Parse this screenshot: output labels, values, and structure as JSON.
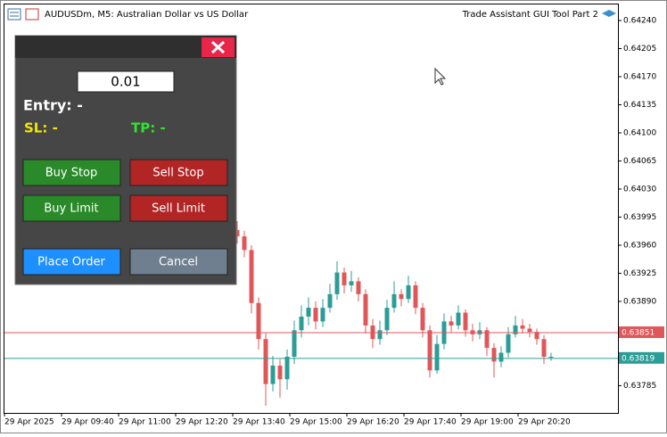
{
  "window": {
    "symbol_title": "AUDUSDm, M5:  Australian Dollar vs US Dollar",
    "expert_name": "Trade Assistant GUI Tool Part 2"
  },
  "chart_data": {
    "type": "candlestick",
    "open": [
      0.63979,
      0.63971,
      0.63954,
      0.63888,
      0.63843,
      0.63787,
      0.6381,
      0.63793,
      0.63821,
      0.63854,
      0.63871,
      0.63882,
      0.63865,
      0.63882,
      0.63899,
      0.63926,
      0.6391,
      0.63915,
      0.63899,
      0.6386,
      0.63843,
      0.63854,
      0.63882,
      0.63899,
      0.63893,
      0.6391,
      0.63882,
      0.63854,
      0.63804,
      0.63837,
      0.63865,
      0.6386,
      0.63876,
      0.63854,
      0.63849,
      0.63854,
      0.63832,
      0.63815,
      0.63826,
      0.63849,
      0.6386,
      0.63856,
      0.63852,
      0.63843,
      0.63821
    ],
    "high": [
      0.6399,
      0.63978,
      0.6396,
      0.63895,
      0.6385,
      0.63822,
      0.63818,
      0.6383,
      0.63866,
      0.63885,
      0.63895,
      0.6389,
      0.63893,
      0.63912,
      0.6394,
      0.63932,
      0.63928,
      0.6392,
      0.63905,
      0.63868,
      0.63866,
      0.63892,
      0.63915,
      0.63905,
      0.63922,
      0.63915,
      0.63888,
      0.6386,
      0.63848,
      0.63875,
      0.63872,
      0.63885,
      0.6388,
      0.63862,
      0.63864,
      0.63858,
      0.63838,
      0.63834,
      0.63858,
      0.63872,
      0.63868,
      0.63862,
      0.63856,
      0.63848,
      0.63826
    ],
    "low": [
      0.63962,
      0.63945,
      0.63875,
      0.6383,
      0.6376,
      0.63778,
      0.6377,
      0.6378,
      0.63812,
      0.63845,
      0.6386,
      0.63855,
      0.63858,
      0.63876,
      0.63892,
      0.639,
      0.63902,
      0.6389,
      0.6385,
      0.63832,
      0.63836,
      0.63848,
      0.63876,
      0.63884,
      0.63888,
      0.63874,
      0.63845,
      0.63795,
      0.638,
      0.6383,
      0.63852,
      0.63855,
      0.63846,
      0.6384,
      0.63843,
      0.63822,
      0.63795,
      0.63808,
      0.6382,
      0.63845,
      0.6385,
      0.63845,
      0.63836,
      0.63812,
      0.63816
    ],
    "close": [
      0.63971,
      0.63954,
      0.63888,
      0.63843,
      0.63787,
      0.6381,
      0.63793,
      0.63821,
      0.63854,
      0.63871,
      0.63882,
      0.63865,
      0.63882,
      0.63899,
      0.63926,
      0.6391,
      0.63915,
      0.63899,
      0.6386,
      0.63843,
      0.63854,
      0.63882,
      0.63899,
      0.63893,
      0.6391,
      0.63882,
      0.63854,
      0.63804,
      0.63837,
      0.63865,
      0.6386,
      0.63876,
      0.63854,
      0.63849,
      0.63854,
      0.63832,
      0.63815,
      0.63826,
      0.63849,
      0.6386,
      0.63856,
      0.63852,
      0.63843,
      0.63821,
      0.63821
    ],
    "up_color": "#2b9d97",
    "down_color": "#e0575a",
    "ylim": [
      0.63751,
      0.6426
    ],
    "yticks": [
      {
        "value": 0.6424,
        "label": "0.64240"
      },
      0.64205,
      {
        "value": 0.6417,
        "label": "0.64170"
      },
      0.64135,
      {
        "value": 0.641,
        "label": "0.64100"
      },
      0.64065,
      {
        "value": 0.6403,
        "label": "0.64030"
      },
      0.63995,
      {
        "value": 0.6396,
        "label": "0.63960"
      },
      0.63925,
      {
        "value": 0.6389,
        "label": "0.63890"
      },
      0.63785
    ],
    "x_labels": [
      "29 Apr 2025",
      "29 Apr 09:40",
      "29 Apr 11:00",
      "29 Apr 12:20",
      "29 Apr 13:40",
      "29 Apr 15:00",
      "29 Apr 16:20",
      "29 Apr 17:40",
      "29 Apr 19:00",
      "29 Apr 20:20"
    ],
    "price_lines": [
      {
        "value": 0.63851,
        "color": "#e0575a"
      },
      {
        "value": 0.63819,
        "color": "#2b9d97"
      }
    ]
  },
  "panel": {
    "lot": "0.01",
    "entry": "Entry: -",
    "sl": "SL: -",
    "tp": "TP: -",
    "buttons": [
      "Buy Stop",
      "Sell Stop",
      "Buy Limit",
      "Sell Limit",
      "Place Order",
      "Cancel"
    ]
  }
}
